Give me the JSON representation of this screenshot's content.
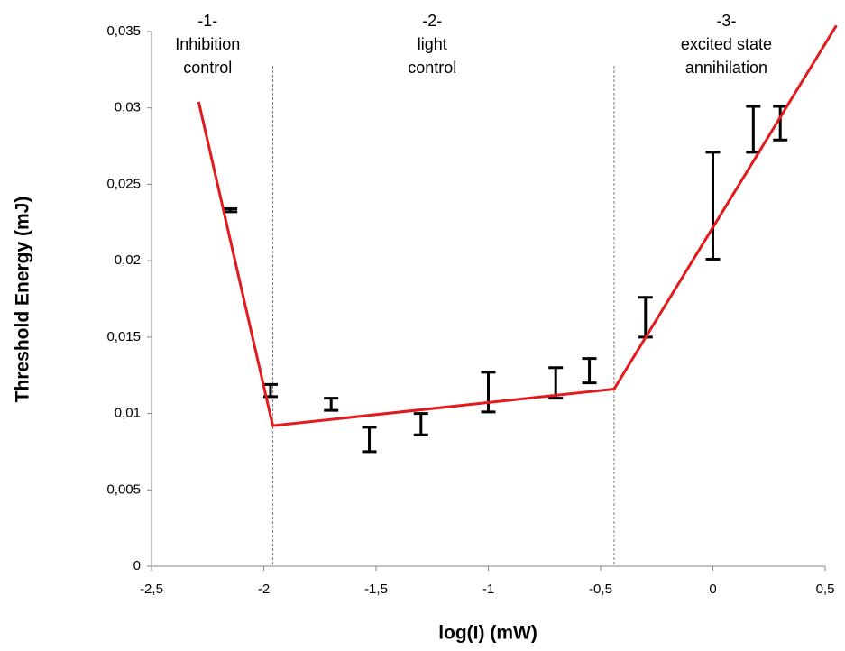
{
  "chart_data": {
    "type": "errorbar",
    "xlabel": "log(I) (mW)",
    "ylabel": "Threshold Energy (mJ)",
    "xlim": [
      -2.5,
      0.5
    ],
    "ylim": [
      0,
      0.035
    ],
    "xticks": [
      {
        "value": -2.5,
        "label": "-2,5"
      },
      -2,
      {
        "value": -1.5,
        "label": "-1,5"
      },
      -1,
      {
        "value": -0.5,
        "label": "-0,5"
      },
      0,
      {
        "value": 0.5,
        "label": "0,5"
      }
    ],
    "yticks": [
      0,
      {
        "value": 0.005,
        "label": "0,005"
      },
      {
        "value": 0.01,
        "label": "0,01"
      },
      {
        "value": 0.015,
        "label": "0,015"
      },
      {
        "value": 0.02,
        "label": "0,02"
      },
      {
        "value": 0.025,
        "label": "0,025"
      },
      {
        "value": 0.03,
        "label": "0,03"
      },
      {
        "value": 0.035,
        "label": "0,035"
      }
    ],
    "grid": false,
    "color": "#000000",
    "x": [
      -2.15,
      -1.97,
      -1.7,
      -1.53,
      -1.3,
      -1,
      -0.7,
      -0.55,
      -0.3,
      0,
      0.18,
      0.3
    ],
    "values": [
      0.0233,
      0.0115,
      0.0106,
      0.0083,
      0.0093,
      0.0114,
      0.012,
      0.0128,
      0.0163,
      0.0236,
      0.0286,
      0.029
    ],
    "errors": [
      0.0001,
      0.0004,
      0.0004,
      0.0008,
      0.0007,
      0.0013,
      0.001,
      0.0008,
      0.0013,
      0.0035,
      0.0015,
      0.0011
    ],
    "fit": {
      "color": "#e31a1c",
      "x": [
        -2.29,
        -1.96,
        -0.44,
        0.55
      ],
      "values": [
        0.0304,
        0.0092,
        0.0116,
        0.0354
      ]
    },
    "dividers": [
      -1.96,
      -0.44
    ],
    "annotations": [
      {
        "x": -2.25,
        "lines": [
          "-1-",
          "Inhibition",
          "control"
        ]
      },
      {
        "x": -1.25,
        "lines": [
          "-2-",
          "light",
          "control"
        ]
      },
      {
        "x": 0.06,
        "lines": [
          "-3-",
          "excited state",
          "annihilation"
        ]
      }
    ]
  }
}
